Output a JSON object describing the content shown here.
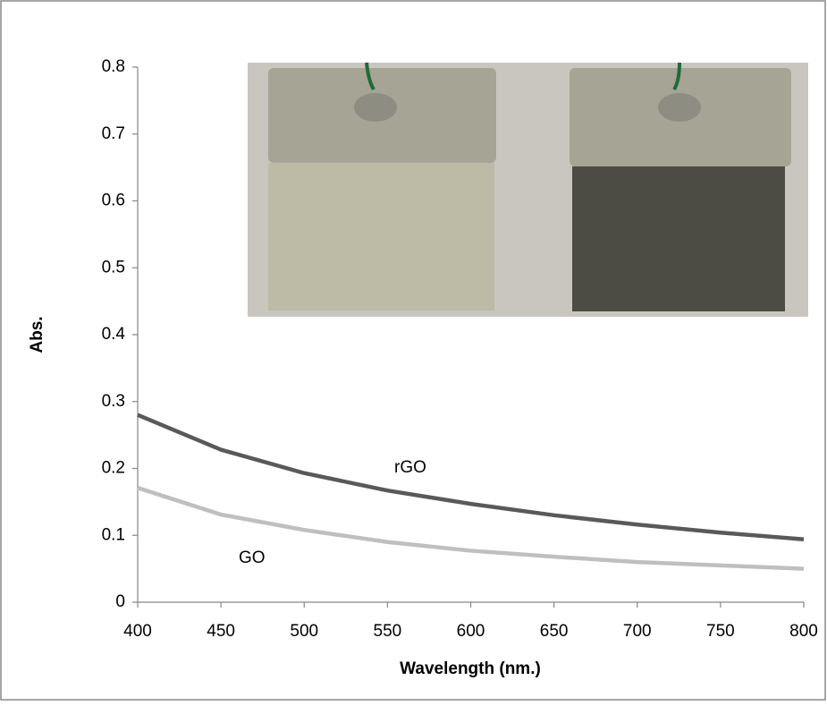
{
  "chart_data": {
    "type": "line",
    "x": [
      400,
      450,
      500,
      550,
      600,
      650,
      700,
      750,
      800
    ],
    "series": [
      {
        "name": "rGO",
        "color": "#595959",
        "values": [
          0.28,
          0.228,
          0.193,
          0.167,
          0.147,
          0.13,
          0.116,
          0.104,
          0.094
        ]
      },
      {
        "name": "GO",
        "color": "#bfbfbf",
        "values": [
          0.171,
          0.131,
          0.108,
          0.09,
          0.077,
          0.068,
          0.06,
          0.055,
          0.05
        ]
      }
    ],
    "xlim": [
      400,
      800
    ],
    "xticks": [
      400,
      450,
      500,
      550,
      600,
      650,
      700,
      750,
      800
    ],
    "ylim": [
      0,
      0.8
    ],
    "yticks": [
      0,
      0.1,
      0.2,
      0.3,
      0.4,
      0.5,
      0.6,
      0.7,
      0.8
    ],
    "x_label": "Wavelength (nm.)",
    "y_label": "Abs.",
    "grid": false
  }
}
